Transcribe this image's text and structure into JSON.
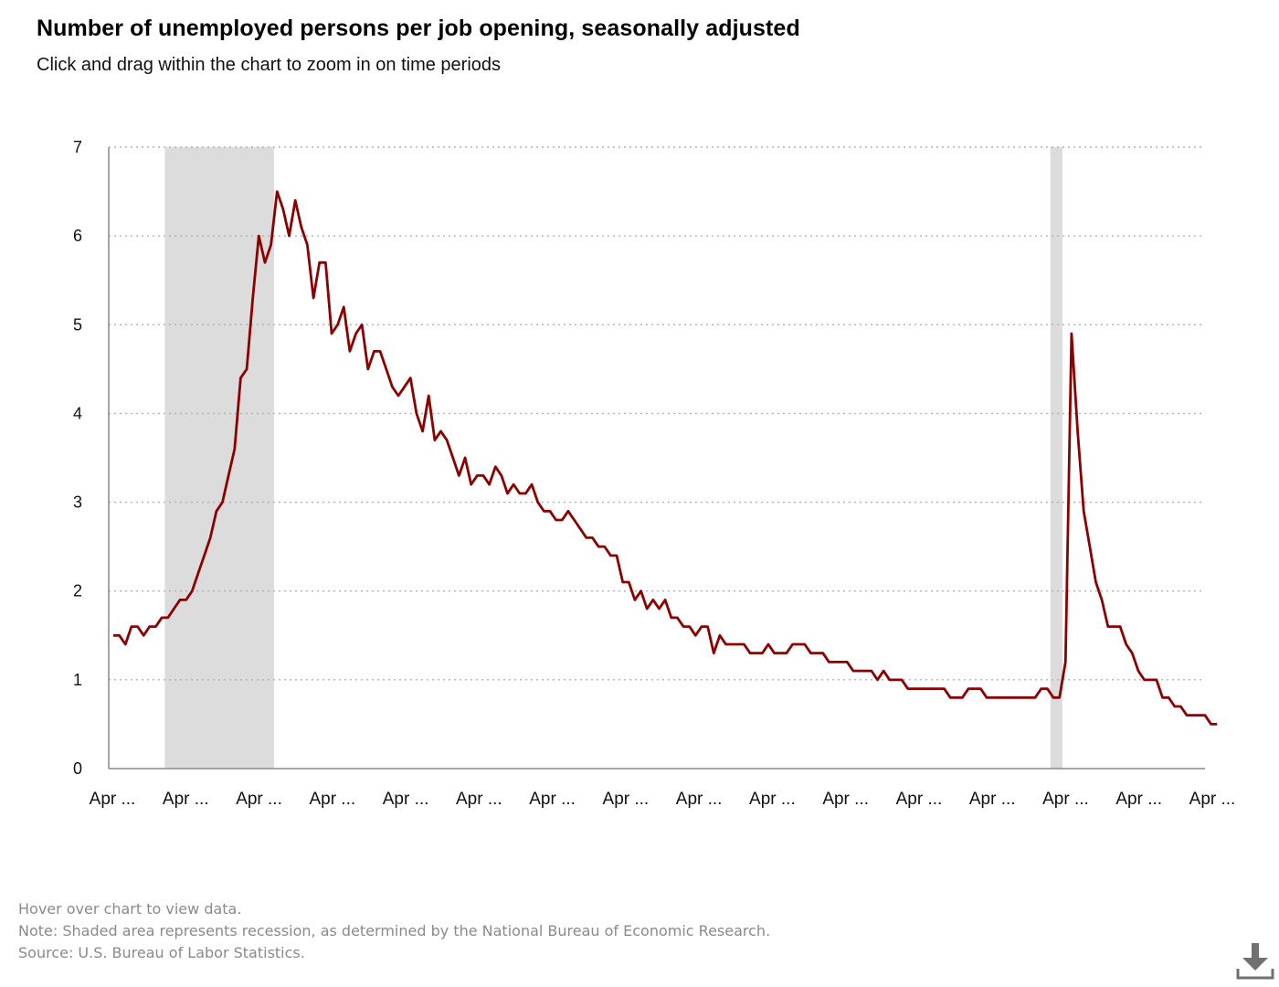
{
  "header": {
    "title": "Number of unemployed persons per job opening, seasonally adjusted",
    "subtitle": "Click and drag within the chart to zoom in on time periods"
  },
  "footer": {
    "hover_note": "Hover over chart to view data.",
    "recession_note": "Note: Shaded area represents recession, as determined by the National Bureau of Economic Research.",
    "source": "Source: U.S. Bureau of Labor Statistics."
  },
  "icons": {
    "download": "download-icon"
  },
  "colors": {
    "series": "#8b0000",
    "recession": "#dcdcdc",
    "grid": "#b0b0b0",
    "axis": "#888888"
  },
  "chart_data": {
    "type": "line",
    "title": "Number of unemployed persons per job opening, seasonally adjusted",
    "xlabel": "",
    "ylabel": "",
    "ylim": [
      0,
      7
    ],
    "yticks": [
      0,
      1,
      2,
      3,
      4,
      5,
      6,
      7
    ],
    "xtick_labels": [
      "Apr ...",
      "Apr ...",
      "Apr ...",
      "Apr ...",
      "Apr ...",
      "Apr ...",
      "Apr ...",
      "Apr ...",
      "Apr ...",
      "Apr ...",
      "Apr ...",
      "Apr ...",
      "Apr ...",
      "Apr ...",
      "Apr ...",
      "Apr ..."
    ],
    "x_range": [
      0,
      180
    ],
    "grid": "horizontal dotted",
    "legend": "none",
    "recessions": [
      [
        8.5,
        26.5
      ],
      [
        154.5,
        156.5
      ]
    ],
    "series": [
      {
        "values": [
          1.5,
          1.5,
          1.4,
          1.6,
          1.6,
          1.5,
          1.6,
          1.6,
          1.7,
          1.7,
          1.8,
          1.9,
          1.9,
          2.0,
          2.2,
          2.4,
          2.6,
          2.9,
          3.0,
          3.3,
          3.6,
          4.4,
          4.5,
          5.3,
          6.0,
          5.7,
          5.9,
          6.5,
          6.3,
          6.0,
          6.4,
          6.1,
          5.9,
          5.3,
          5.7,
          5.7,
          4.9,
          5.0,
          5.2,
          4.7,
          4.9,
          5.0,
          4.5,
          4.7,
          4.7,
          4.5,
          4.3,
          4.2,
          4.3,
          4.4,
          4.0,
          3.8,
          4.2,
          3.7,
          3.8,
          3.7,
          3.5,
          3.3,
          3.5,
          3.2,
          3.3,
          3.3,
          3.2,
          3.4,
          3.3,
          3.1,
          3.2,
          3.1,
          3.1,
          3.2,
          3.0,
          2.9,
          2.9,
          2.8,
          2.8,
          2.9,
          2.8,
          2.7,
          2.6,
          2.6,
          2.5,
          2.5,
          2.4,
          2.4,
          2.1,
          2.1,
          1.9,
          2.0,
          1.8,
          1.9,
          1.8,
          1.9,
          1.7,
          1.7,
          1.6,
          1.6,
          1.5,
          1.6,
          1.6,
          1.3,
          1.5,
          1.4,
          1.4,
          1.4,
          1.4,
          1.3,
          1.3,
          1.3,
          1.4,
          1.3,
          1.3,
          1.3,
          1.4,
          1.4,
          1.4,
          1.3,
          1.3,
          1.3,
          1.2,
          1.2,
          1.2,
          1.2,
          1.1,
          1.1,
          1.1,
          1.1,
          1.0,
          1.1,
          1.0,
          1.0,
          1.0,
          0.9,
          0.9,
          0.9,
          0.9,
          0.9,
          0.9,
          0.9,
          0.8,
          0.8,
          0.8,
          0.9,
          0.9,
          0.9,
          0.8,
          0.8,
          0.8,
          0.8,
          0.8,
          0.8,
          0.8,
          0.8,
          0.8,
          0.9,
          0.9,
          0.8,
          0.8,
          1.2,
          4.9,
          3.8,
          2.9,
          2.5,
          2.1,
          1.9,
          1.6,
          1.6,
          1.6,
          1.4,
          1.3,
          1.1,
          1.0,
          1.0,
          1.0,
          0.8,
          0.8,
          0.7,
          0.7,
          0.6,
          0.6,
          0.6,
          0.6,
          0.5,
          0.5
        ]
      }
    ]
  }
}
